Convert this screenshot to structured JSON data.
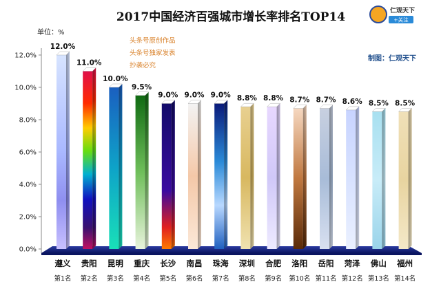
{
  "chart_data": {
    "type": "bar",
    "title": "2017中国经济百强城市增长率排名TOP14",
    "unit_label": "单位：%",
    "categories": [
      "遵义",
      "贵阳",
      "昆明",
      "重庆",
      "长沙",
      "南昌",
      "珠海",
      "深圳",
      "合肥",
      "洛阳",
      "岳阳",
      "菏泽",
      "佛山",
      "福州"
    ],
    "ranks": [
      "第1名",
      "第2名",
      "第3名",
      "第4名",
      "第5名",
      "第6名",
      "第7名",
      "第8名",
      "第9名",
      "第10名",
      "第11名",
      "第12名",
      "第13名",
      "第14名"
    ],
    "values": [
      12.0,
      11.0,
      10.0,
      9.5,
      9.0,
      9.0,
      9.0,
      8.8,
      8.8,
      8.7,
      8.7,
      8.6,
      8.5,
      8.5
    ],
    "value_labels": [
      "12.0%",
      "11.0%",
      "10.0%",
      "9.5%",
      "9.0%",
      "9.0%",
      "9.0%",
      "8.8%",
      "8.8%",
      "8.7%",
      "8.7%",
      "8.6%",
      "8.5%",
      "8.5%"
    ],
    "yticks": [
      "0.0%",
      "2.0%",
      "4.0%",
      "6.0%",
      "8.0%",
      "10.0%",
      "12.0%"
    ],
    "ylim": [
      0,
      12
    ],
    "grid": false,
    "legend": "none"
  },
  "watermark": [
    "头条号原创作品",
    "头条号独家发表",
    "抄袭必究"
  ],
  "credit": "制图：仁观天下",
  "logo": {
    "name": "仁观天下",
    "follow": "+关注"
  },
  "colors": {
    "floor": "#1a2a8a",
    "credit": "#1f4e8c",
    "watermark": "#d9822b"
  }
}
